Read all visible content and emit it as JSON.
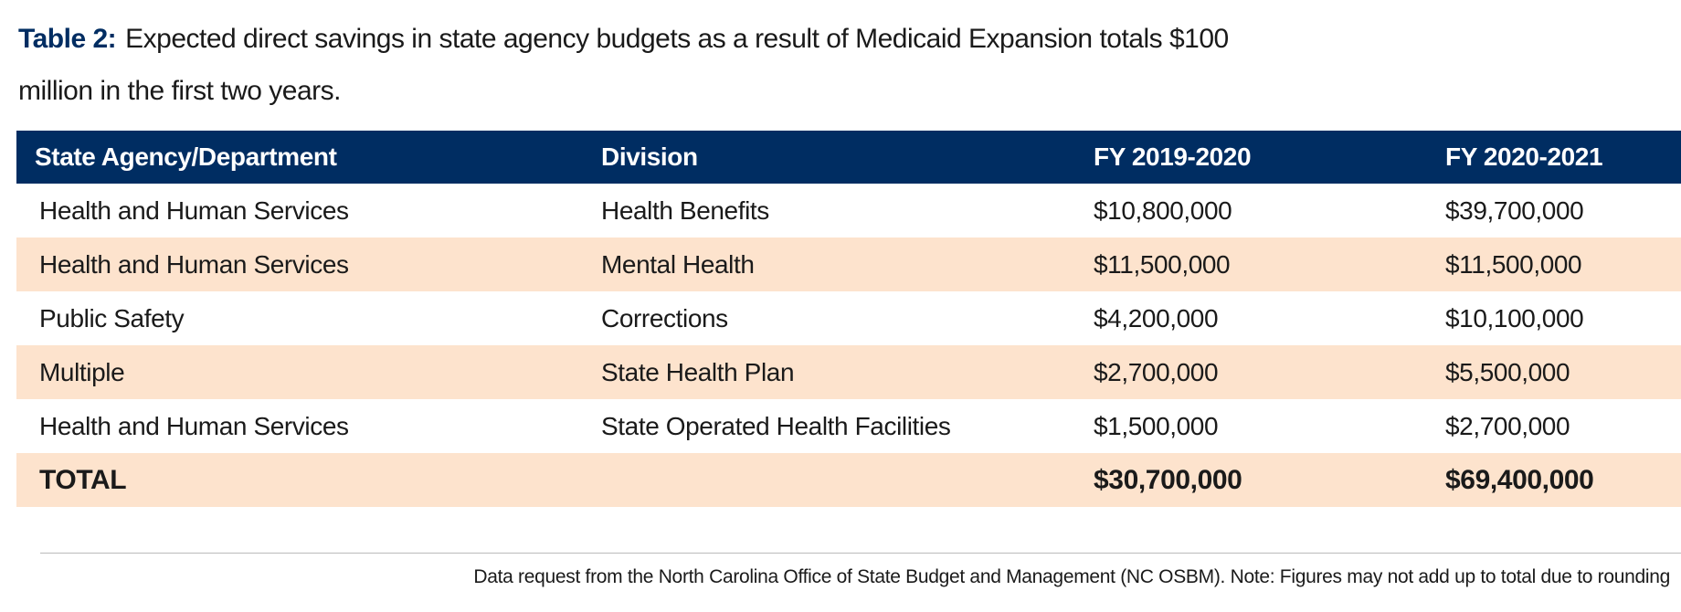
{
  "title": {
    "label": "Table 2:",
    "text": "Expected direct savings in state agency budgets as a result of Medicaid Expansion totals $100 million in the first two years."
  },
  "table": {
    "columns": [
      "State Agency/Department",
      "Division",
      "FY 2019-2020",
      "FY 2020-2021"
    ],
    "rows": [
      [
        "Health and Human Services",
        "Health Benefits",
        "$10,800,000",
        "$39,700,000"
      ],
      [
        "Health and Human Services",
        "Mental Health",
        "$11,500,000",
        "$11,500,000"
      ],
      [
        "Public Safety",
        "Corrections",
        "$4,200,000",
        "$10,100,000"
      ],
      [
        "Multiple",
        "State Health Plan",
        "$2,700,000",
        "$5,500,000"
      ],
      [
        "Health and Human Services",
        "State Operated Health Facilities",
        "$1,500,000",
        "$2,700,000"
      ]
    ],
    "total": {
      "label": "TOTAL",
      "values": [
        "$30,700,000",
        "$69,400,000"
      ]
    }
  },
  "note": "Data request from the North Carolina Office of State Budget and Management (NC OSBM). Note: Figures may not add up to total due to rounding"
}
